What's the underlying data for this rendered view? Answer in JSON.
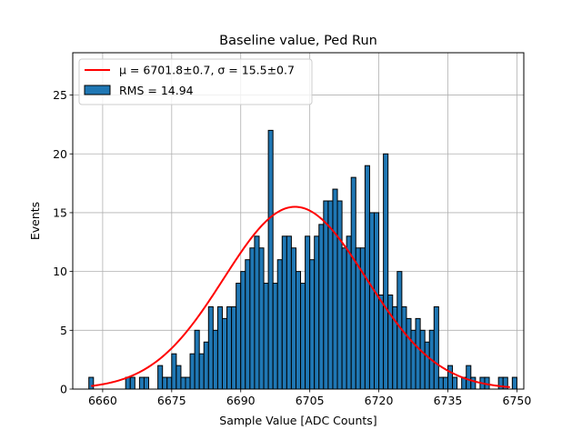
{
  "chart_data": {
    "type": "bar",
    "title": "Baseline value, Ped Run",
    "xlabel": "Sample Value [ADC Counts]",
    "ylabel": "Events",
    "xlim": [
      6653.5,
      6751.5
    ],
    "ylim": [
      0,
      28.6
    ],
    "xticks": [
      6660,
      6675,
      6690,
      6705,
      6720,
      6735,
      6750
    ],
    "yticks": [
      0,
      5,
      10,
      15,
      20,
      25
    ],
    "grid": true,
    "legend_position": "top-left",
    "bin_start": 6657,
    "bin_width": 1,
    "counts": [
      1,
      0,
      0,
      0,
      0,
      0,
      0,
      0,
      1,
      1,
      0,
      1,
      1,
      0,
      0,
      2,
      1,
      1,
      3,
      2,
      1,
      1,
      3,
      5,
      3,
      4,
      7,
      5,
      7,
      6,
      7,
      7,
      9,
      10,
      11,
      12,
      13,
      12,
      9,
      22,
      9,
      11,
      13,
      13,
      12,
      10,
      9,
      13,
      11,
      13,
      14,
      16,
      16,
      17,
      16,
      12,
      13,
      18,
      12,
      12,
      19,
      15,
      15,
      8,
      20,
      8,
      7,
      10,
      7,
      6,
      5,
      6,
      5,
      4,
      5,
      7,
      1,
      1,
      2,
      1,
      0,
      1,
      2,
      1,
      0,
      1,
      1,
      0,
      0,
      1,
      1,
      0,
      1
    ],
    "series": [
      {
        "name": "Histogram",
        "label": "RMS = 14.94",
        "color": "#1f77b4",
        "edge_color": "#000000"
      },
      {
        "name": "Gaussian fit",
        "label": "μ = 6701.8±0.7, σ = 15.5±0.7",
        "color": "#ff0000",
        "amplitude": 15.5,
        "mean": 6701.8,
        "sigma": 15.5,
        "x_range": [
          6657.5,
          6748.5
        ]
      }
    ]
  }
}
